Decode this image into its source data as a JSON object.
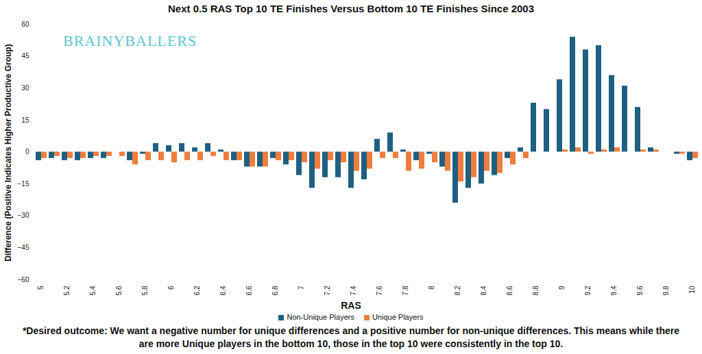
{
  "chart_data": {
    "type": "bar",
    "title": "Next 0.5 RAS Top 10 TE Finishes Versus Bottom 10 TE Finishes Since 2003",
    "logo_text": "BRAINYBALLERS",
    "x_label": "RAS",
    "y_label": "Difference (Positive Indicates Higher Productive Group)",
    "caption": [
      "*Desired outcome: We want a negative number for unique differences and a positive number for non-unique differences. This means while there",
      "are more Unique players in the bottom 10, those in the top 10 were consistently in the top 10."
    ],
    "categories": [
      "5",
      null,
      "5.2",
      null,
      "5.4",
      null,
      "5.6",
      null,
      "5.8",
      null,
      "6",
      null,
      "6.2",
      null,
      "6.4",
      null,
      "6.6",
      null,
      "6.8",
      null,
      "7",
      null,
      "7.2",
      null,
      "7.4",
      null,
      "7.6",
      null,
      "7.8",
      null,
      "8",
      null,
      "8.2",
      null,
      "8.4",
      null,
      "8.6",
      null,
      "8.8",
      null,
      "9",
      null,
      "9.2",
      null,
      "9.4",
      null,
      "9.6",
      null,
      "9.8",
      null,
      "10"
    ],
    "series": [
      {
        "name": "Non-Unique Players",
        "color": "#1f5f82",
        "values": [
          -4,
          -3,
          -4,
          -4,
          -3,
          -3,
          0,
          -4,
          -1,
          4,
          3,
          4,
          2,
          4,
          1,
          -4,
          -7,
          -7,
          -3,
          -6,
          -11,
          -17,
          -12,
          -12,
          -17,
          -13,
          6,
          9,
          1,
          -4,
          -1,
          -7,
          -24,
          -17,
          -15,
          -11,
          -3,
          2,
          23,
          20,
          34,
          54,
          48,
          50,
          36,
          31,
          21,
          2,
          0,
          -1,
          -4
        ]
      },
      {
        "name": "Unique Players",
        "color": "#ef7d3c",
        "values": [
          -3,
          -2,
          -3,
          -3,
          -2,
          -2,
          -2,
          -6,
          -4,
          -4,
          -5,
          -4,
          -4,
          -2,
          -4,
          -4,
          -7,
          -7,
          -4,
          -4,
          -5,
          -8,
          -4,
          -5,
          -9,
          -8,
          -3,
          -3,
          -9,
          -8,
          -5,
          -9,
          -14,
          -12,
          -9,
          -10,
          -6,
          -3,
          0,
          0,
          1,
          2,
          -1,
          1,
          2,
          0,
          1,
          1,
          0,
          -1,
          -3
        ]
      }
    ],
    "ylim": [
      -60,
      60
    ],
    "yticks": [
      -60,
      -45,
      -30,
      -15,
      0,
      15,
      30,
      45,
      60
    ],
    "grid": false,
    "legend": "bottom"
  }
}
